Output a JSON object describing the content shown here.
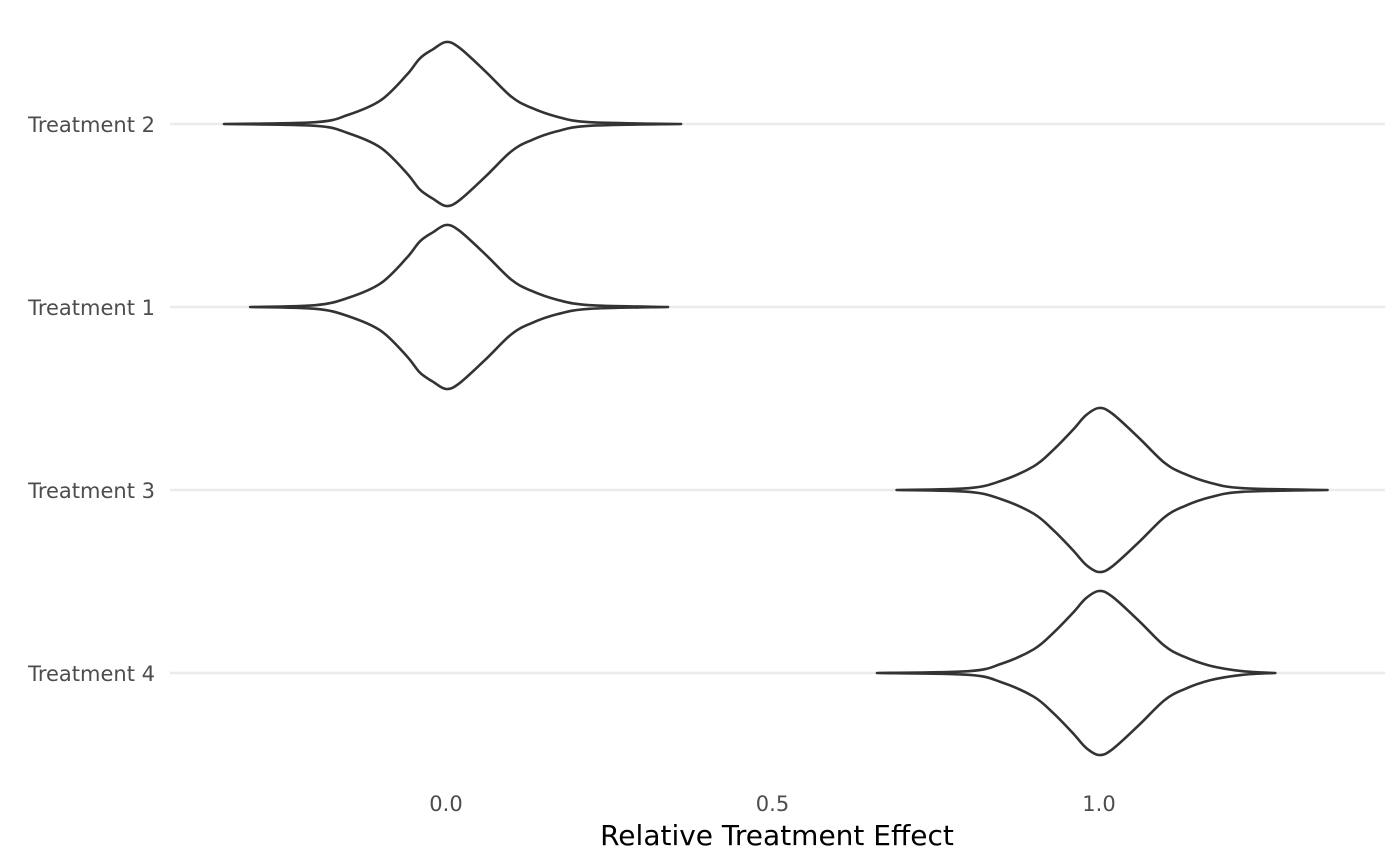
{
  "chart_data": {
    "type": "violin",
    "title": "",
    "xlabel": "Relative Treatment Effect",
    "ylabel": "",
    "xlim": [
      -0.46,
      1.44
    ],
    "x_ticks": [
      {
        "value": 0.0,
        "label": "0.0"
      },
      {
        "value": 0.5,
        "label": "0.5"
      },
      {
        "value": 1.0,
        "label": "1.0"
      }
    ],
    "grid": {
      "major_y": true,
      "major_x": false
    },
    "legend": "none",
    "colors": {
      "outline": "#333333",
      "fill": "#ffffff",
      "grid": "#ebebeb",
      "tick_text": "#4d4d4d"
    },
    "categories": [
      "Treatment 2",
      "Treatment 1",
      "Treatment 3",
      "Treatment 4"
    ],
    "series": [
      {
        "name": "Treatment 2",
        "min": -0.34,
        "max": 0.36,
        "profile": [
          [
            -0.34,
            0.0
          ],
          [
            -0.2,
            0.01
          ],
          [
            -0.15,
            0.05
          ],
          [
            -0.1,
            0.13
          ],
          [
            -0.06,
            0.27
          ],
          [
            -0.04,
            0.36
          ],
          [
            -0.02,
            0.41
          ],
          [
            0.0,
            0.45
          ],
          [
            0.02,
            0.42
          ],
          [
            0.06,
            0.29
          ],
          [
            0.1,
            0.15
          ],
          [
            0.13,
            0.09
          ],
          [
            0.17,
            0.04
          ],
          [
            0.22,
            0.01
          ],
          [
            0.36,
            0.0
          ]
        ]
      },
      {
        "name": "Treatment 1",
        "min": -0.3,
        "max": 0.34,
        "profile": [
          [
            -0.3,
            0.0
          ],
          [
            -0.2,
            0.01
          ],
          [
            -0.15,
            0.05
          ],
          [
            -0.1,
            0.13
          ],
          [
            -0.06,
            0.27
          ],
          [
            -0.04,
            0.36
          ],
          [
            -0.02,
            0.41
          ],
          [
            0.0,
            0.45
          ],
          [
            0.02,
            0.42
          ],
          [
            0.06,
            0.29
          ],
          [
            0.1,
            0.15
          ],
          [
            0.13,
            0.09
          ],
          [
            0.17,
            0.04
          ],
          [
            0.22,
            0.01
          ],
          [
            0.34,
            0.0
          ]
        ]
      },
      {
        "name": "Treatment 3",
        "min": 0.69,
        "max": 1.35,
        "profile": [
          [
            0.69,
            0.0
          ],
          [
            0.8,
            0.01
          ],
          [
            0.85,
            0.05
          ],
          [
            0.9,
            0.13
          ],
          [
            0.93,
            0.22
          ],
          [
            0.96,
            0.33
          ],
          [
            0.98,
            0.41
          ],
          [
            1.0,
            0.45
          ],
          [
            1.02,
            0.42
          ],
          [
            1.06,
            0.29
          ],
          [
            1.1,
            0.15
          ],
          [
            1.13,
            0.09
          ],
          [
            1.17,
            0.04
          ],
          [
            1.22,
            0.01
          ],
          [
            1.35,
            0.0
          ]
        ]
      },
      {
        "name": "Treatment 4",
        "min": 0.66,
        "max": 1.27,
        "profile": [
          [
            0.66,
            0.0
          ],
          [
            0.8,
            0.01
          ],
          [
            0.85,
            0.05
          ],
          [
            0.9,
            0.13
          ],
          [
            0.93,
            0.22
          ],
          [
            0.96,
            0.33
          ],
          [
            0.98,
            0.41
          ],
          [
            1.0,
            0.45
          ],
          [
            1.02,
            0.42
          ],
          [
            1.06,
            0.29
          ],
          [
            1.1,
            0.15
          ],
          [
            1.13,
            0.09
          ],
          [
            1.17,
            0.04
          ],
          [
            1.22,
            0.01
          ],
          [
            1.27,
            0.0
          ]
        ]
      }
    ]
  }
}
